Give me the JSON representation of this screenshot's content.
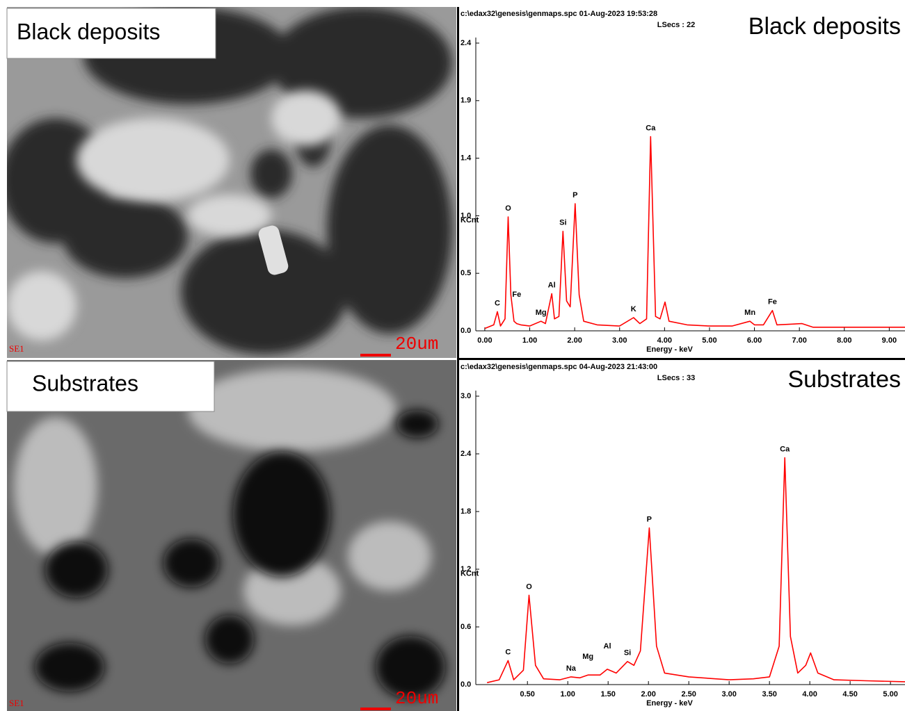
{
  "panels": [
    {
      "label": "Black deposits",
      "detector": "SE1",
      "scale_bar": "20um"
    },
    {
      "label": "Substrates",
      "detector": "SE1",
      "scale_bar": "20um"
    }
  ],
  "chart_data": [
    {
      "type": "line",
      "file_info": "c:\\edax32\\genesis\\genmaps.spc  01-Aug-2023 19:53:28",
      "live_time": "LSecs : 22",
      "title": "Black deposits",
      "x_label": "Energy - keV",
      "y_label": "KCnt",
      "color": "#ff0000",
      "x": [
        0.0,
        0.2,
        0.28,
        0.35,
        0.45,
        0.52,
        0.58,
        0.65,
        0.71,
        0.8,
        1.0,
        1.25,
        1.35,
        1.49,
        1.55,
        1.65,
        1.74,
        1.82,
        1.9,
        2.01,
        2.1,
        2.2,
        2.5,
        3.0,
        3.31,
        3.45,
        3.6,
        3.69,
        3.8,
        3.9,
        4.01,
        4.1,
        4.5,
        5.0,
        5.5,
        5.9,
        6.0,
        6.2,
        6.4,
        6.5,
        7.06,
        7.3,
        8.0,
        9.0,
        9.35
      ],
      "values": [
        0.02,
        0.05,
        0.16,
        0.04,
        0.1,
        0.95,
        0.3,
        0.08,
        0.06,
        0.05,
        0.04,
        0.08,
        0.06,
        0.31,
        0.1,
        0.12,
        0.83,
        0.25,
        0.2,
        1.06,
        0.3,
        0.08,
        0.05,
        0.04,
        0.11,
        0.06,
        0.1,
        1.62,
        0.12,
        0.1,
        0.24,
        0.08,
        0.05,
        0.04,
        0.04,
        0.08,
        0.05,
        0.05,
        0.17,
        0.05,
        0.06,
        0.03,
        0.03,
        0.03,
        0.03
      ],
      "annotations": [
        {
          "text": "C",
          "x": 0.28,
          "y": 0.16
        },
        {
          "text": "O",
          "x": 0.52,
          "y": 0.95
        },
        {
          "text": "Fe",
          "x": 0.71,
          "y": 0.23
        },
        {
          "text": "Mg",
          "x": 1.25,
          "y": 0.08
        },
        {
          "text": "Al",
          "x": 1.49,
          "y": 0.31
        },
        {
          "text": "Si",
          "x": 1.74,
          "y": 0.83
        },
        {
          "text": "P",
          "x": 2.01,
          "y": 1.06
        },
        {
          "text": "K",
          "x": 3.31,
          "y": 0.11
        },
        {
          "text": "Ca",
          "x": 3.69,
          "y": 1.62
        },
        {
          "text": "Mn",
          "x": 5.9,
          "y": 0.08
        },
        {
          "text": "Fe",
          "x": 6.4,
          "y": 0.17
        }
      ],
      "xlim": [
        -0.2,
        9.35
      ],
      "ylim": [
        0,
        2.4
      ],
      "xticks": [
        {
          "value": 0,
          "label": "0.00"
        },
        {
          "value": 1,
          "label": "1.00"
        },
        {
          "value": 2,
          "label": "2.00"
        },
        {
          "value": 3,
          "label": "3.00"
        },
        {
          "value": 4,
          "label": "4.00"
        },
        {
          "value": 5,
          "label": "5.00"
        },
        {
          "value": 6,
          "label": "6.00"
        },
        {
          "value": 7,
          "label": "7.00"
        },
        {
          "value": 8,
          "label": "8.00"
        },
        {
          "value": 9,
          "label": "9.00"
        }
      ],
      "yticks": [
        {
          "value": 0,
          "label": "0.0"
        },
        {
          "value": 0.48,
          "label": "0.5"
        },
        {
          "value": 0.96,
          "label": "1.0"
        },
        {
          "value": 1.44,
          "label": "1.4"
        },
        {
          "value": 1.92,
          "label": "1.9"
        },
        {
          "value": 2.4,
          "label": "2.4"
        }
      ]
    },
    {
      "type": "line",
      "file_info": "c:\\edax32\\genesis\\genmaps.spc  04-Aug-2023 21:43:00",
      "live_time": "LSecs : 33",
      "title": "Substrates",
      "x_label": "Energy - keV",
      "y_label": "KCnt",
      "color": "#ff0000",
      "x": [
        0.0,
        0.15,
        0.26,
        0.33,
        0.45,
        0.52,
        0.6,
        0.7,
        0.9,
        1.04,
        1.15,
        1.25,
        1.4,
        1.49,
        1.6,
        1.74,
        1.82,
        1.9,
        2.01,
        2.1,
        2.2,
        2.5,
        3.0,
        3.3,
        3.5,
        3.62,
        3.69,
        3.76,
        3.85,
        3.95,
        4.01,
        4.1,
        4.3,
        4.7,
        5.18
      ],
      "values": [
        0.02,
        0.05,
        0.25,
        0.05,
        0.15,
        0.93,
        0.2,
        0.06,
        0.05,
        0.08,
        0.07,
        0.1,
        0.1,
        0.16,
        0.12,
        0.24,
        0.2,
        0.35,
        1.63,
        0.4,
        0.12,
        0.08,
        0.05,
        0.06,
        0.08,
        0.4,
        2.36,
        0.5,
        0.12,
        0.2,
        0.33,
        0.12,
        0.05,
        0.04,
        0.03
      ],
      "annotations": [
        {
          "text": "C",
          "x": 0.26,
          "y": 0.25
        },
        {
          "text": "O",
          "x": 0.52,
          "y": 0.93
        },
        {
          "text": "Na",
          "x": 1.04,
          "y": 0.08
        },
        {
          "text": "Mg",
          "x": 1.25,
          "y": 0.2
        },
        {
          "text": "Al",
          "x": 1.49,
          "y": 0.31
        },
        {
          "text": "Si",
          "x": 1.74,
          "y": 0.24
        },
        {
          "text": "P",
          "x": 2.01,
          "y": 1.63
        },
        {
          "text": "Ca",
          "x": 3.69,
          "y": 2.36
        }
      ],
      "xlim": [
        -0.14,
        5.18
      ],
      "ylim": [
        0,
        3.0
      ],
      "xticks": [
        {
          "value": 0.5,
          "label": "0.50"
        },
        {
          "value": 1,
          "label": "1.00"
        },
        {
          "value": 1.5,
          "label": "1.50"
        },
        {
          "value": 2,
          "label": "2.00"
        },
        {
          "value": 2.5,
          "label": "2.50"
        },
        {
          "value": 3,
          "label": "3.00"
        },
        {
          "value": 3.5,
          "label": "3.50"
        },
        {
          "value": 4,
          "label": "4.00"
        },
        {
          "value": 4.5,
          "label": "4.50"
        },
        {
          "value": 5,
          "label": "5.00"
        }
      ],
      "yticks": [
        {
          "value": 0,
          "label": "0.0"
        },
        {
          "value": 0.6,
          "label": "0.6"
        },
        {
          "value": 1.2,
          "label": "1.2"
        },
        {
          "value": 1.8,
          "label": "1.8"
        },
        {
          "value": 2.4,
          "label": "2.4"
        },
        {
          "value": 3.0,
          "label": "3.0"
        }
      ]
    }
  ]
}
